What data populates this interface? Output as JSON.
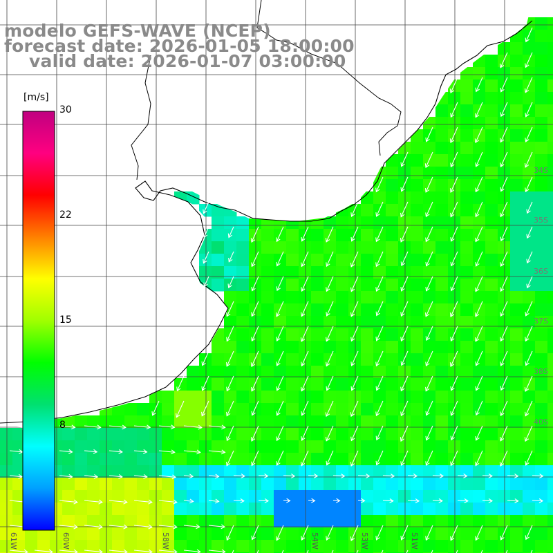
{
  "titles": {
    "model": "modelo GEFS-WAVE (NCEP)",
    "forecast": "forecast date: 2026-01-05 18:00:00",
    "valid": "valid date: 2026-01-07 03:00:00"
  },
  "colorbar": {
    "unit": "[m/s]",
    "min": 0,
    "max": 30,
    "tick_labels": [
      "30",
      "22",
      "15",
      "8"
    ],
    "tick_values": [
      30,
      22,
      15,
      8
    ],
    "colors": [
      "#0000ff",
      "#00a0ff",
      "#00ffff",
      "#00e070",
      "#00ff00",
      "#a0ff00",
      "#ffff00",
      "#ff8000",
      "#ff0000",
      "#ff0080",
      "#c00080"
    ]
  },
  "map": {
    "lon_range": [
      -61.3,
      -50.5
    ],
    "lat_range": [
      -41.5,
      -30.5
    ],
    "lon_labels": [
      "61W",
      "60W",
      "58W",
      "54W",
      "53W",
      "51W"
    ],
    "lat_labels": [
      "34S",
      "35S",
      "36S",
      "37S",
      "38S",
      "40S"
    ],
    "grid": true,
    "land_color": "#ffffff",
    "coast_color": "#000000",
    "arrow_color": "#ffffff"
  }
}
